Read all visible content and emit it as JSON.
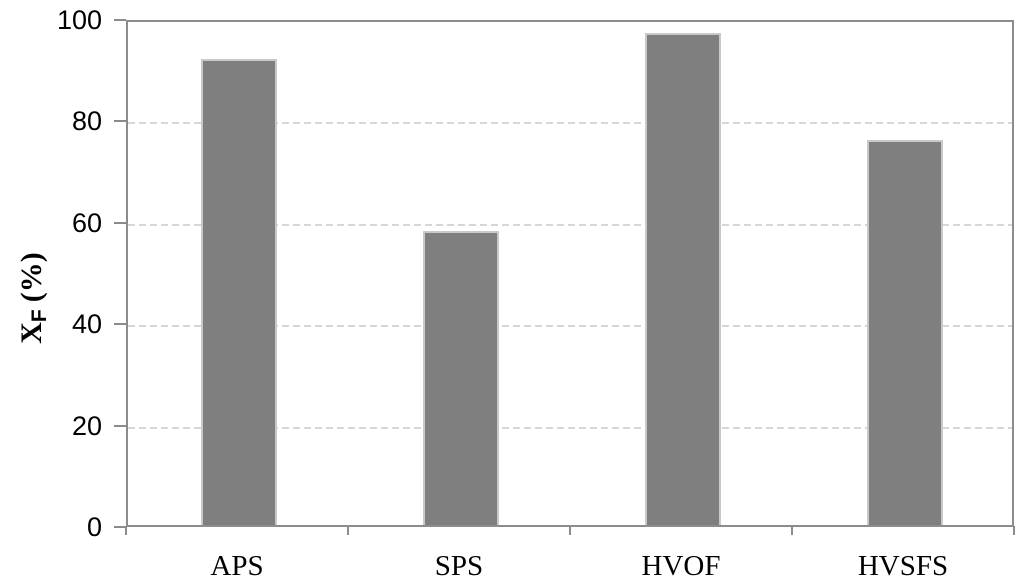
{
  "chart_data": {
    "type": "bar",
    "categories": [
      "APS",
      "SPS",
      "HVOF",
      "HVSFS"
    ],
    "values": [
      92,
      58,
      97,
      76
    ],
    "title": "",
    "xlabel": "",
    "ylabel": "XF (%)",
    "ylabel_parts": {
      "base": "X",
      "subscript": "F",
      "suffix": "(%)"
    },
    "ylim": [
      0,
      100
    ],
    "yticks": [
      0,
      20,
      40,
      60,
      80,
      100
    ],
    "grid": "horizontal-dashed",
    "legend": "none",
    "colors": {
      "bar_fill": "#7f7f7f",
      "bar_border": "#c9c9c9",
      "axis_line": "#8c8c8c",
      "gridline": "#d6d6d6",
      "text": "#000000",
      "background": "#ffffff"
    }
  }
}
